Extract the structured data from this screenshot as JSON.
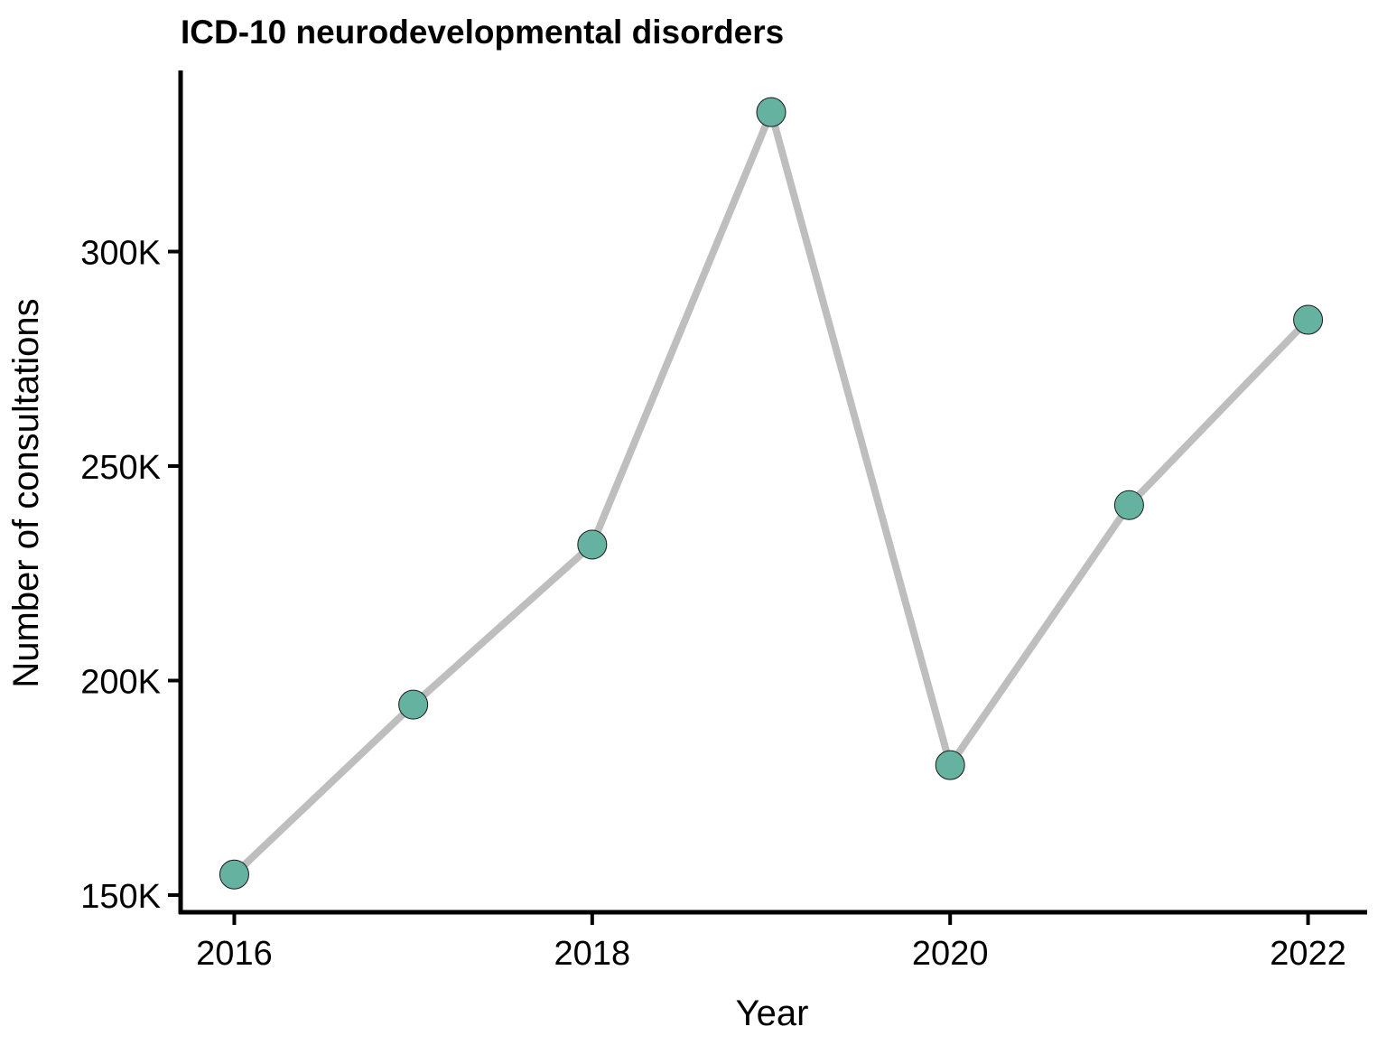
{
  "chart_data": {
    "type": "line",
    "title": "ICD-10 neurodevelopmental disorders",
    "xlabel": "Year",
    "ylabel": "Number of consultations",
    "x": [
      2016,
      2017,
      2018,
      2019,
      2020,
      2021,
      2022
    ],
    "values": [
      154800,
      194400,
      231700,
      332500,
      180300,
      240900,
      284100
    ],
    "xlim": [
      2015.7,
      2022.32
    ],
    "ylim": [
      146000,
      341800
    ],
    "x_ticks": [
      2016,
      2018,
      2020,
      2022
    ],
    "x_tick_labels": [
      "2016",
      "2018",
      "2020",
      "2022"
    ],
    "y_ticks": [
      150000,
      200000,
      250000,
      300000
    ],
    "y_tick_labels": [
      "150K",
      "200K",
      "250K",
      "300K"
    ],
    "grid": false,
    "legend": "none",
    "colors": {
      "line": "#bebebe",
      "point_fill": "#66b2a0",
      "point_stroke": "#1a1a1a",
      "axis": "#000000"
    }
  }
}
